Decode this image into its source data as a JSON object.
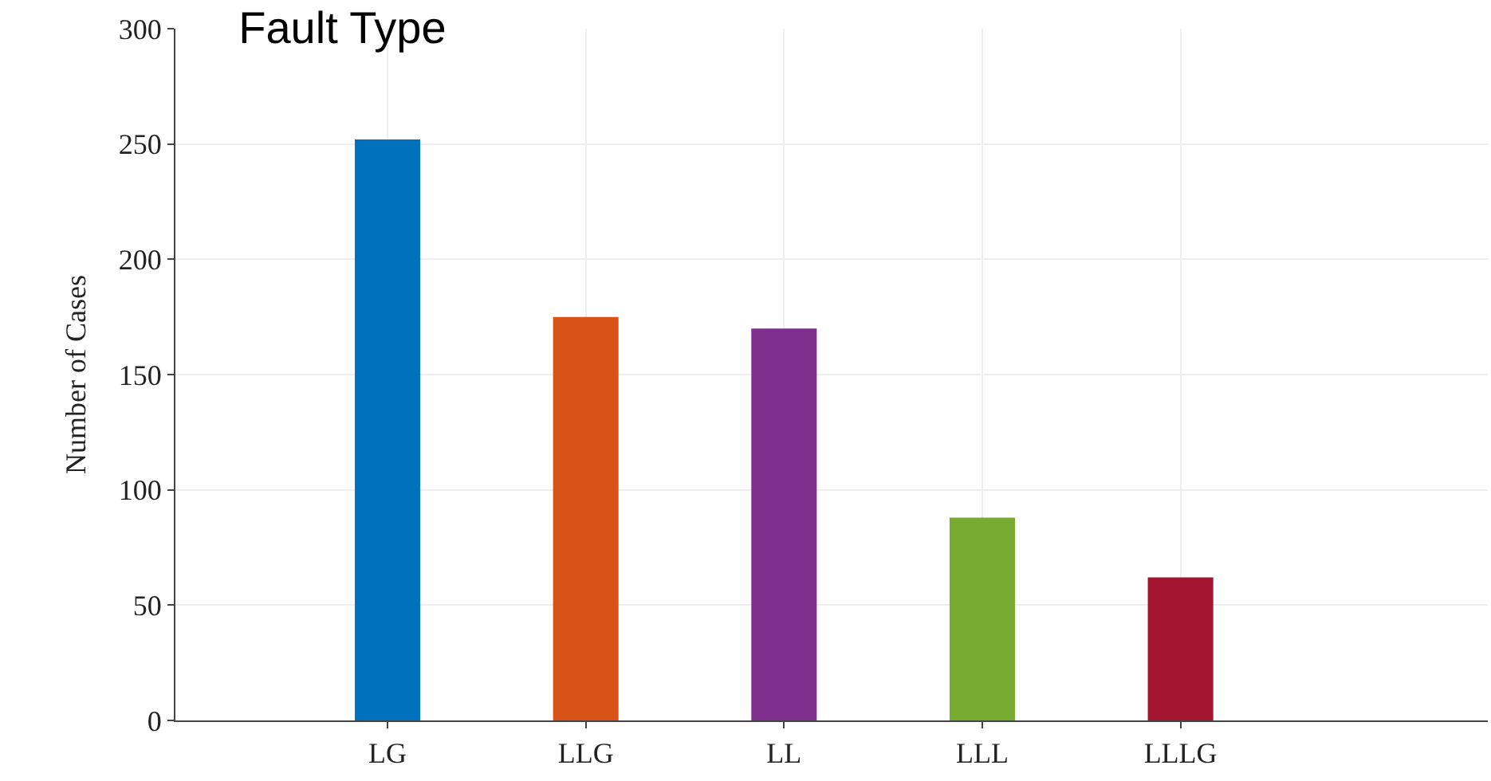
{
  "chart_data": {
    "type": "bar",
    "title": "Fault Type",
    "ylabel": "Number of Cases",
    "categories": [
      "LG",
      "LLG",
      "LL",
      "LLL",
      "LLLG"
    ],
    "values": [
      252,
      175,
      170,
      88,
      62
    ],
    "colors": [
      "#0072bd",
      "#d95319",
      "#7e2f8e",
      "#77ac30",
      "#a2142f"
    ],
    "ylim": [
      0,
      300
    ],
    "yticks": [
      0,
      50,
      100,
      150,
      200,
      250,
      300
    ],
    "grid": true
  }
}
